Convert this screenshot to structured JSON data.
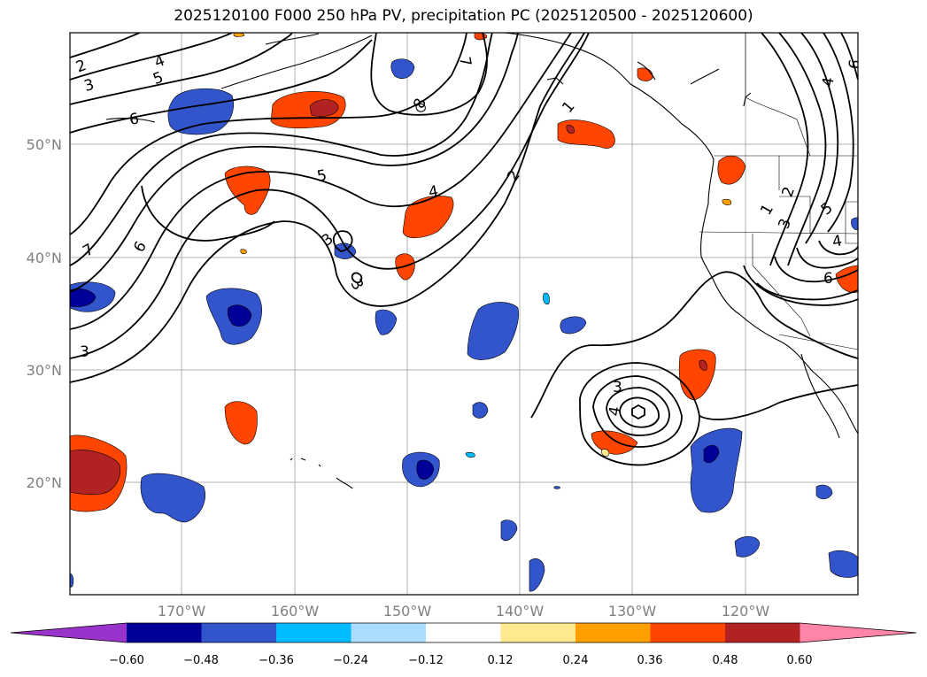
{
  "title": "2025120100 F000 250 hPa PV, precipitation PC (2025120500 - 2025120600)",
  "lon_ticks": [
    "170°W",
    "160°W",
    "150°W",
    "140°W",
    "130°W",
    "120°W"
  ],
  "lat_ticks": [
    "50°N",
    "40°N",
    "30°N",
    "20°N"
  ],
  "colorbar": {
    "colors": [
      "#9933cc",
      "#000099",
      "#3355cc",
      "#00bbff",
      "#aaddff",
      "#ffffff",
      "#ffe98f",
      "#ffa000",
      "#ff4500",
      "#b22222",
      "#ff85a8"
    ],
    "labels": [
      "−0.60",
      "−0.48",
      "−0.36",
      "−0.24",
      "−0.12",
      "0.12",
      "0.24",
      "0.36",
      "0.48",
      "0.60"
    ]
  },
  "contour_labels": [
    "2",
    "3",
    "4",
    "5",
    "6",
    "7",
    "1",
    "2",
    "3",
    "4",
    "5",
    "6",
    "1",
    "2",
    "3",
    "4",
    "5",
    "6",
    "7",
    "3",
    "4",
    "3",
    "3",
    "4",
    "6",
    "8"
  ]
}
